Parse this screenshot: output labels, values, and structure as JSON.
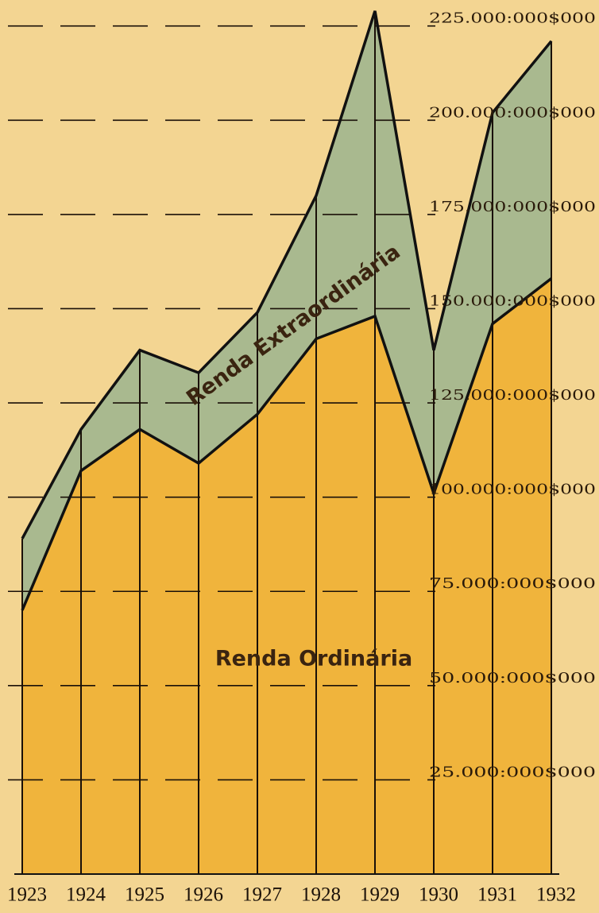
{
  "chart_data": {
    "type": "stacked_area",
    "categories": [
      "1923",
      "1924",
      "1925",
      "1926",
      "1927",
      "1928",
      "1929",
      "1930",
      "1931",
      "1932"
    ],
    "series": [
      {
        "name": "Renda Ordinária",
        "color": "#f0b43c",
        "values": [
          70000000,
          107000000,
          118000000,
          109000000,
          122000000,
          142000000,
          148000000,
          101000000,
          146000000,
          158000000
        ]
      },
      {
        "name": "Renda Extraordinária",
        "color": "#a9b98f",
        "values": [
          19000000,
          11000000,
          21000000,
          24000000,
          27000000,
          38000000,
          81000000,
          38000000,
          56000000,
          63000000
        ]
      }
    ],
    "ylim": [
      0,
      230000000
    ],
    "yticks": [
      {
        "value": 25000000,
        "label": "25.000:000$000"
      },
      {
        "value": 50000000,
        "label": "50.000:000$000"
      },
      {
        "value": 75000000,
        "label": "75.000:000$000"
      },
      {
        "value": 100000000,
        "label": "100.000:000$000"
      },
      {
        "value": 125000000,
        "label": "125.000:000$000"
      },
      {
        "value": 150000000,
        "label": "150.000:000$000"
      },
      {
        "value": 175000000,
        "label": "175.000:000$000"
      },
      {
        "value": 200000000,
        "label": "200.000:000$000"
      },
      {
        "value": 225000000,
        "label": "225.000:000$000"
      }
    ],
    "grid": true
  }
}
